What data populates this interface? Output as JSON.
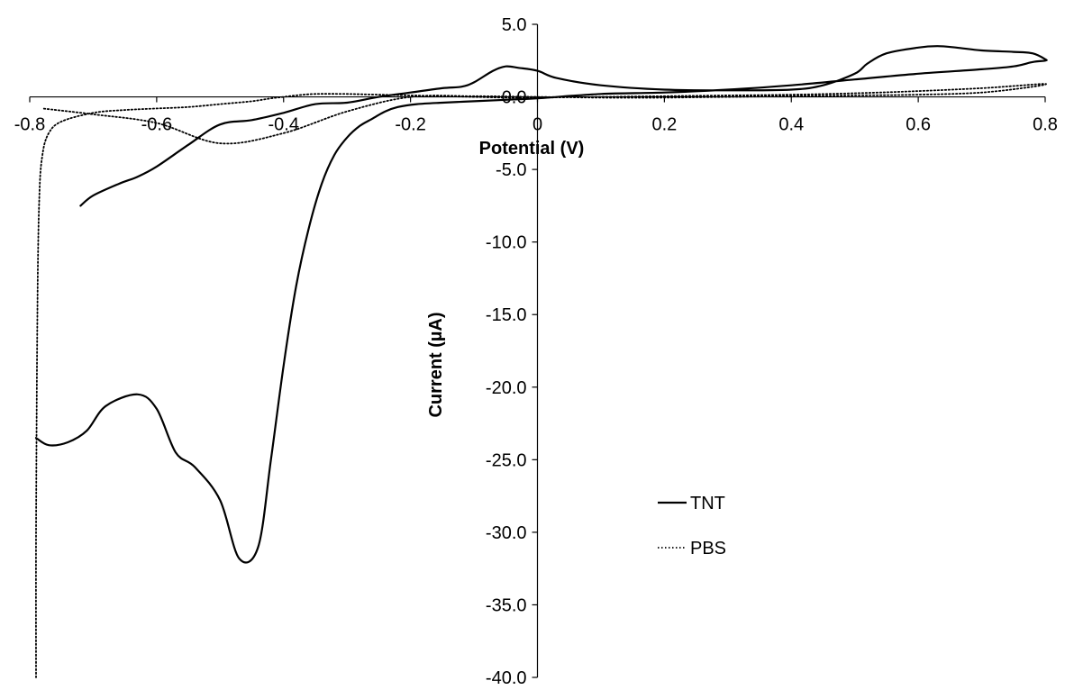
{
  "chart_data": {
    "type": "line",
    "title": "",
    "xlabel": "Potential (V)",
    "ylabel": "Current (µA)",
    "xlim": [
      -0.8,
      0.8
    ],
    "ylim": [
      -40.0,
      5.0
    ],
    "x_ticks": [
      "-0.8",
      "-0.6",
      "-0.4",
      "-0.2",
      "0",
      "0.2",
      "0.4",
      "0.6",
      "0.8"
    ],
    "y_ticks": [
      "5.0",
      "0.0",
      "-5.0",
      "-10.0",
      "-15.0",
      "-20.0",
      "-25.0",
      "-30.0",
      "-35.0",
      "-40.0"
    ],
    "grid": false,
    "legend_position": "right",
    "series": [
      {
        "name": "TNT",
        "line_style": "solid",
        "color": "#000000",
        "x": [
          -0.79,
          -0.77,
          -0.74,
          -0.71,
          -0.68,
          -0.63,
          -0.6,
          -0.57,
          -0.54,
          -0.5,
          -0.47,
          -0.44,
          -0.42,
          -0.4,
          -0.38,
          -0.36,
          -0.34,
          -0.32,
          -0.3,
          -0.28,
          -0.26,
          -0.24,
          -0.22,
          -0.19,
          -0.15,
          -0.1,
          -0.05,
          0.0,
          0.1,
          0.2,
          0.3,
          0.4,
          0.5,
          0.6,
          0.7,
          0.75,
          0.78,
          0.8,
          0.8,
          0.78,
          0.75,
          0.7,
          0.66,
          0.63,
          0.6,
          0.55,
          0.52,
          0.5,
          0.45,
          0.4,
          0.3,
          0.2,
          0.1,
          0.03,
          0.0,
          -0.03,
          -0.05,
          -0.07,
          -0.1,
          -0.12,
          -0.15,
          -0.2,
          -0.25,
          -0.3,
          -0.35,
          -0.4,
          -0.45,
          -0.5,
          -0.55,
          -0.6,
          -0.63,
          -0.66,
          -0.7,
          -0.72
        ],
        "y": [
          -23.5,
          -24.0,
          -23.8,
          -23.0,
          -21.3,
          -20.5,
          -21.5,
          -24.5,
          -25.5,
          -27.8,
          -31.8,
          -31.0,
          -25.0,
          -18.5,
          -13.0,
          -9.0,
          -6.0,
          -4.0,
          -2.8,
          -2.0,
          -1.5,
          -1.0,
          -0.7,
          -0.5,
          -0.4,
          -0.3,
          -0.2,
          -0.1,
          0.2,
          0.3,
          0.5,
          0.8,
          1.2,
          1.6,
          1.9,
          2.1,
          2.4,
          2.5,
          2.6,
          3.0,
          3.1,
          3.2,
          3.4,
          3.5,
          3.4,
          3.0,
          2.3,
          1.6,
          0.8,
          0.5,
          0.45,
          0.5,
          0.8,
          1.3,
          1.8,
          2.0,
          2.1,
          1.8,
          1.0,
          0.7,
          0.6,
          0.3,
          0.0,
          -0.4,
          -0.5,
          -1.1,
          -1.6,
          -1.9,
          -3.3,
          -4.8,
          -5.5,
          -6.0,
          -6.8,
          -7.5
        ]
      },
      {
        "name": "PBS",
        "line_style": "dotted",
        "color": "#000000",
        "x": [
          -0.79,
          -0.79,
          -0.788,
          -0.785,
          -0.78,
          -0.77,
          -0.75,
          -0.7,
          -0.65,
          -0.6,
          -0.55,
          -0.5,
          -0.45,
          -0.42,
          -0.4,
          -0.38,
          -0.35,
          -0.3,
          -0.25,
          -0.2,
          -0.15,
          -0.1,
          -0.05,
          0.0,
          0.1,
          0.2,
          0.3,
          0.4,
          0.5,
          0.6,
          0.7,
          0.75,
          0.8,
          0.78,
          0.7,
          0.6,
          0.5,
          0.4,
          0.3,
          0.2,
          0.1,
          0.0,
          -0.1,
          -0.2,
          -0.3,
          -0.4,
          -0.5,
          -0.6,
          -0.7,
          -0.78
        ],
        "y": [
          -40.0,
          -30.0,
          -15.0,
          -7.0,
          -4.0,
          -2.5,
          -1.7,
          -1.1,
          -0.9,
          -0.8,
          -0.7,
          -0.5,
          -0.3,
          -0.1,
          0.0,
          0.1,
          0.2,
          0.2,
          0.15,
          0.1,
          0.05,
          0.0,
          -0.05,
          -0.05,
          0.0,
          0.05,
          0.1,
          0.15,
          0.25,
          0.4,
          0.6,
          0.75,
          0.9,
          0.7,
          0.3,
          0.15,
          0.1,
          0.05,
          0.0,
          -0.05,
          -0.05,
          0.0,
          0.05,
          0.0,
          -1.0,
          -2.5,
          -3.2,
          -1.8,
          -1.2,
          -0.8
        ]
      }
    ]
  }
}
